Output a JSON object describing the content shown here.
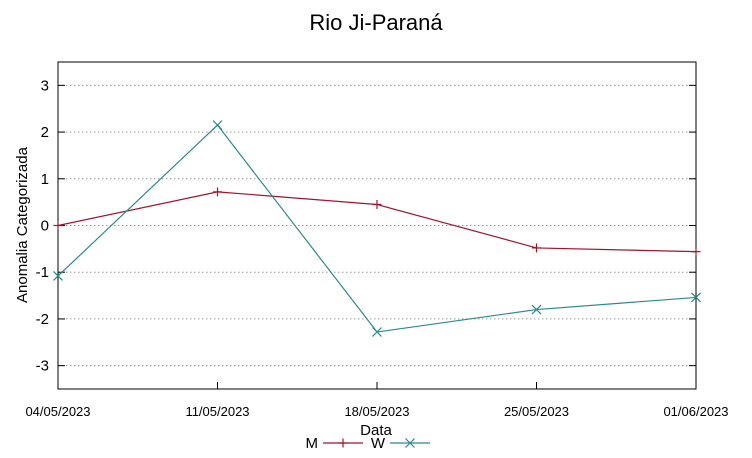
{
  "chart_data": {
    "type": "line",
    "title": "Rio Ji-Paraná",
    "xlabel": "Data",
    "ylabel": "Anomalia Categorizada",
    "categories": [
      "04/05/2023",
      "11/05/2023",
      "18/05/2023",
      "25/05/2023",
      "01/06/2023"
    ],
    "yticks": [
      "-3",
      "-2",
      "-1",
      "0",
      "1",
      "2",
      "3"
    ],
    "ylim": [
      -3.5,
      3.5
    ],
    "grid": true,
    "legend_position": "bottom-center",
    "series": [
      {
        "name": "M",
        "color": "#a0152a",
        "marker": "plus",
        "values": [
          0.0,
          0.72,
          0.45,
          -0.48,
          -0.56
        ]
      },
      {
        "name": "W",
        "color": "#2a8a8a",
        "marker": "cross",
        "values": [
          -1.08,
          2.15,
          -2.28,
          -1.8,
          -1.54
        ]
      }
    ]
  }
}
